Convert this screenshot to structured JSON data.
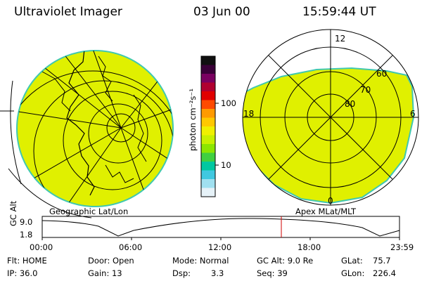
{
  "header": {
    "title": "Ultraviolet Imager",
    "date": "03 Jun 00",
    "time": "15:59:44 UT"
  },
  "colorbar": {
    "unit_label": "photon cm⁻²s⁻¹",
    "ticks": [
      {
        "label": "100"
      },
      {
        "label": "10"
      }
    ],
    "colors": [
      "#101010",
      "#3a0038",
      "#7a0060",
      "#b00030",
      "#e00000",
      "#ff4a00",
      "#ff9a00",
      "#ffc800",
      "#f0f000",
      "#c8f000",
      "#8ce600",
      "#40d040",
      "#00c8a0",
      "#40c8e0",
      "#a0e0f0",
      "#e6f2f8"
    ]
  },
  "left_map": {
    "label": "Geographic Lat/Lon",
    "fill_color": "#e0f000",
    "edge_color": "#40c8b0"
  },
  "right_map": {
    "label": "Apex MLat/MLT",
    "fill_color": "#e0f000",
    "edge_color": "#40c8b0",
    "lat_labels": [
      "60",
      "70",
      "80"
    ],
    "mlt_labels": {
      "top": "12",
      "bottom": "0",
      "left": "18",
      "right": "6"
    }
  },
  "altitude_plot": {
    "ylabel": "GC Alt",
    "yticks": [
      "9.0",
      "1.8"
    ],
    "xticks": [
      "00:00",
      "06:00",
      "12:00",
      "18:00",
      "23:59"
    ],
    "current_time_color": "#d00000"
  },
  "info": {
    "flt": "Flt: HOME",
    "ip": "IP: 36.0",
    "door": "Door: Open",
    "gain": "Gain: 13",
    "mode": "Mode: Normal",
    "dsp_label": "Dsp:",
    "dsp_value": "3.3",
    "gcalt": "GC Alt: 9.0 Re",
    "seq": "Seq: 39",
    "glat_label": "GLat:",
    "glat_value": "75.7",
    "glon_label": "GLon:",
    "glon_value": "226.4"
  }
}
